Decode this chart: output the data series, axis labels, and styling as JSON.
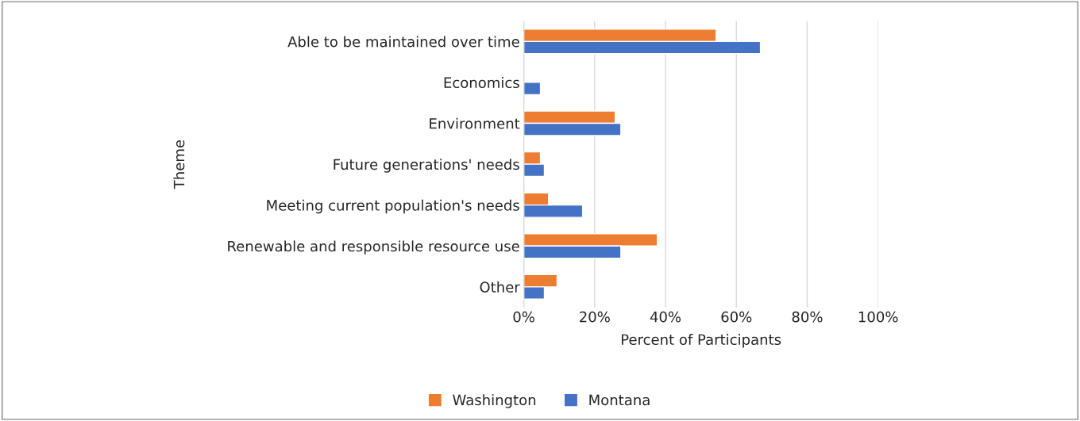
{
  "chart_data": {
    "type": "bar",
    "orientation": "horizontal",
    "xlabel": "Percent of Participants",
    "ylabel": "Theme",
    "categories": [
      "Able to be maintained over time",
      "Economics",
      "Environment",
      "Future generations' needs",
      "Meeting current population's needs",
      "Renewable and responsible resource use",
      "Other"
    ],
    "series": [
      {
        "name": "Washington",
        "color": "#ed7d31",
        "values": [
          54.3,
          null,
          25.8,
          4.7,
          7,
          37.7,
          9.4
        ]
      },
      {
        "name": "Montana",
        "color": "#4472c4",
        "values": [
          66.8,
          4.7,
          27.4,
          5.8,
          16.6,
          27.4,
          5.8
        ]
      }
    ],
    "xlim": [
      0,
      100
    ],
    "xticks": [
      {
        "value": 0,
        "label": "0%"
      },
      {
        "value": 20,
        "label": "20%"
      },
      {
        "value": 40,
        "label": "40%"
      },
      {
        "value": 60,
        "label": "60%"
      },
      {
        "value": 80,
        "label": "80%"
      },
      {
        "value": 100,
        "label": "100%"
      }
    ],
    "grid": "x",
    "legend": "bottom"
  }
}
